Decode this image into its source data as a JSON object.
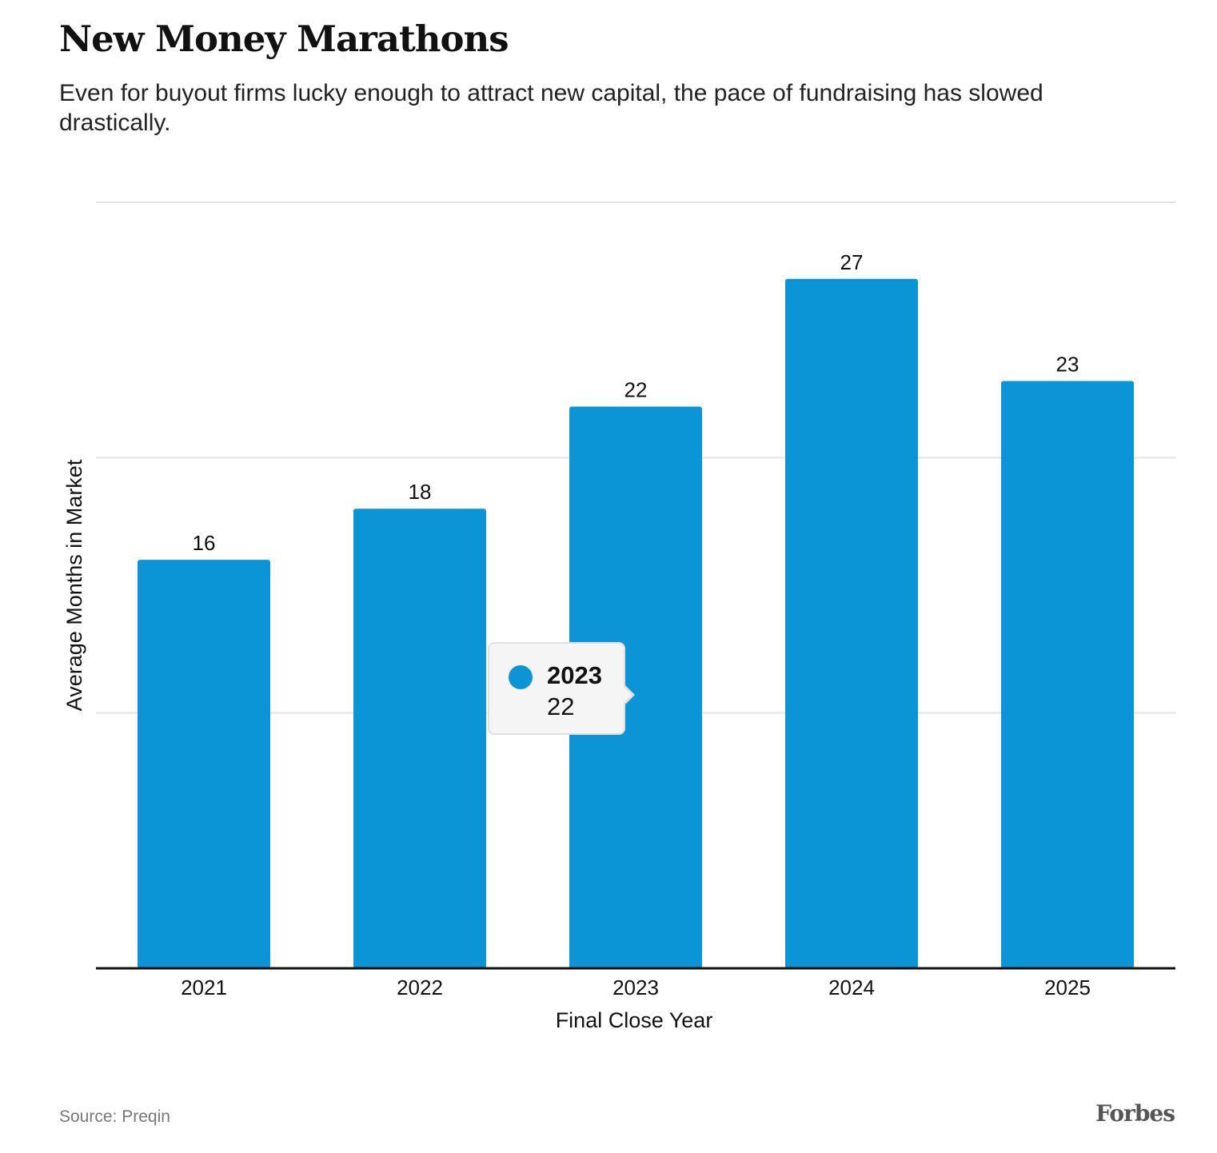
{
  "chart_data": {
    "type": "bar",
    "title": "New Money Marathons",
    "subtitle": "Even for buyout firms lucky enough to attract new capital, the pace of fundraising has slowed drastically.",
    "categories": [
      "2021",
      "2022",
      "2023",
      "2024",
      "2025"
    ],
    "values": [
      16,
      18,
      22,
      27,
      23
    ],
    "xlabel": "Final Close Year",
    "ylabel": "Average Months in Market",
    "ylim": [
      0,
      30
    ],
    "gridlines": [
      10,
      20,
      30
    ],
    "grid": true,
    "bar_color": "#0c95d6",
    "tooltip": {
      "year": "2023",
      "value": "22"
    }
  },
  "footer": {
    "source": "Source: Preqin",
    "logo": "Forbes"
  }
}
